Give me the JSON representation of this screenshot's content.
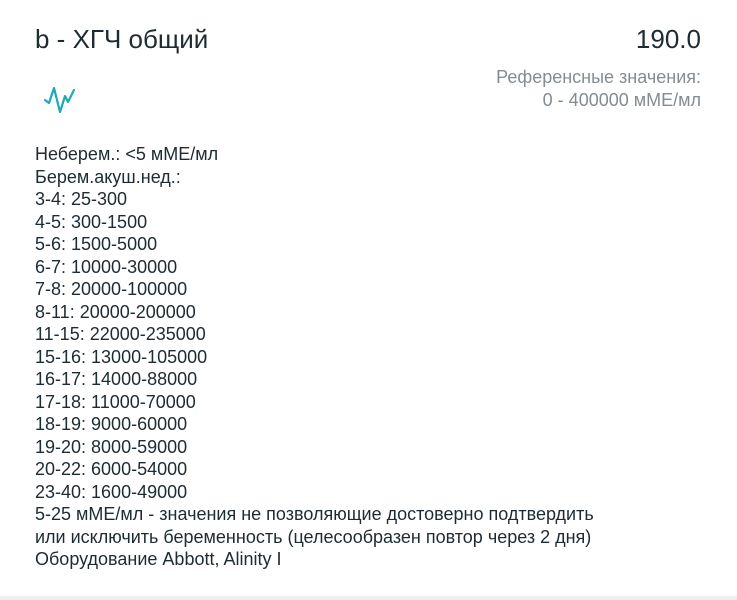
{
  "test": {
    "title": "b - ХГЧ общий",
    "value": "190.0",
    "reference_label": "Референсные значения:",
    "reference_range": "0 - 400000 мМЕ/мл",
    "icon": "activity-pulse-icon",
    "accent_color": "#1fa9b8"
  },
  "notes": [
    "Неберем.: <5 мМЕ/мл",
    "Берем.акуш.нед.:",
    "3-4: 25-300",
    "4-5: 300-1500",
    "5-6: 1500-5000",
    "6-7: 10000-30000",
    "7-8: 20000-100000",
    "8-11: 20000-200000",
    "11-15: 22000-235000",
    "15-16: 13000-105000",
    "16-17: 14000-88000",
    "17-18: 11000-70000",
    "18-19: 9000-60000",
    "19-20: 8000-59000",
    "20-22: 6000-54000",
    "23-40: 1600-49000",
    "5-25 мМЕ/мл - значения не позволяющие достоверно подтвердить",
    "или исключить беременность (целесообразен повтор через 2 дня)",
    "Оборудование Abbott, Alinity I"
  ]
}
